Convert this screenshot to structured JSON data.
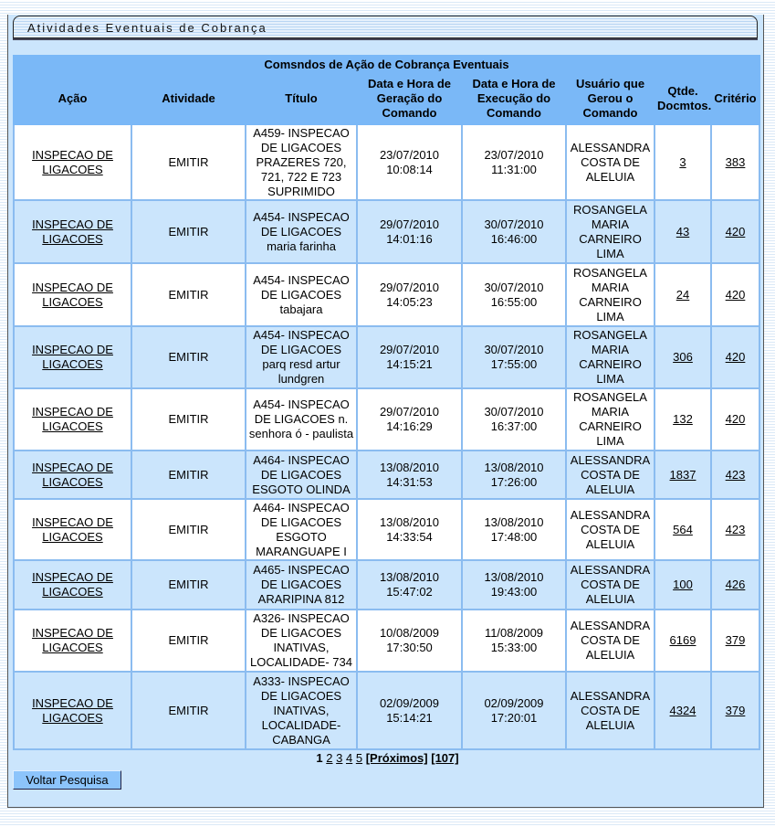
{
  "page_title": "Atividades Eventuais de Cobrança",
  "table": {
    "caption": "Comsndos de Ação de Cobrança Eventuais",
    "headers": [
      "Ação",
      "Atividade",
      "Título",
      "Data e Hora de Geração do Comando",
      "Data e Hora de Execução do Comando",
      "Usuário que Gerou o Comando",
      "Qtde. Docmtos.",
      "Critério"
    ],
    "rows": [
      {
        "acao": "INSPECAO DE LIGACOES",
        "atividade": "EMITIR",
        "titulo": "A459- INSPECAO DE LIGACOES PRAZERES 720, 721, 722 E 723 SUPRIMIDO",
        "geracao": "23/07/2010 10:08:14",
        "execucao": "23/07/2010 11:31:00",
        "usuario": "ALESSANDRA COSTA DE ALELUIA",
        "qtde": "3",
        "criterio": "383"
      },
      {
        "acao": "INSPECAO DE LIGACOES",
        "atividade": "EMITIR",
        "titulo": "A454- INSPECAO DE LIGACOES maria farinha",
        "geracao": "29/07/2010 14:01:16",
        "execucao": "30/07/2010 16:46:00",
        "usuario": "ROSANGELA MARIA CARNEIRO LIMA",
        "qtde": "43",
        "criterio": "420"
      },
      {
        "acao": "INSPECAO DE LIGACOES",
        "atividade": "EMITIR",
        "titulo": "A454- INSPECAO DE LIGACOES tabajara",
        "geracao": "29/07/2010 14:05:23",
        "execucao": "30/07/2010 16:55:00",
        "usuario": "ROSANGELA MARIA CARNEIRO LIMA",
        "qtde": "24",
        "criterio": "420"
      },
      {
        "acao": "INSPECAO DE LIGACOES",
        "atividade": "EMITIR",
        "titulo": "A454- INSPECAO DE LIGACOES parq resd artur lundgren",
        "geracao": "29/07/2010 14:15:21",
        "execucao": "30/07/2010 17:55:00",
        "usuario": "ROSANGELA MARIA CARNEIRO LIMA",
        "qtde": "306",
        "criterio": "420"
      },
      {
        "acao": "INSPECAO DE LIGACOES",
        "atividade": "EMITIR",
        "titulo": "A454- INSPECAO DE LIGACOES n. senhora ó - paulista",
        "geracao": "29/07/2010 14:16:29",
        "execucao": "30/07/2010 16:37:00",
        "usuario": "ROSANGELA MARIA CARNEIRO LIMA",
        "qtde": "132",
        "criterio": "420"
      },
      {
        "acao": "INSPECAO DE LIGACOES",
        "atividade": "EMITIR",
        "titulo": "A464- INSPECAO DE LIGACOES ESGOTO OLINDA",
        "geracao": "13/08/2010 14:31:53",
        "execucao": "13/08/2010 17:26:00",
        "usuario": "ALESSANDRA COSTA DE ALELUIA",
        "qtde": "1837",
        "criterio": "423"
      },
      {
        "acao": "INSPECAO DE LIGACOES",
        "atividade": "EMITIR",
        "titulo": "A464- INSPECAO DE LIGACOES ESGOTO MARANGUAPE I",
        "geracao": "13/08/2010 14:33:54",
        "execucao": "13/08/2010 17:48:00",
        "usuario": "ALESSANDRA COSTA DE ALELUIA",
        "qtde": "564",
        "criterio": "423"
      },
      {
        "acao": "INSPECAO DE LIGACOES",
        "atividade": "EMITIR",
        "titulo": "A465- INSPECAO DE LIGACOES ARARIPINA 812",
        "geracao": "13/08/2010 15:47:02",
        "execucao": "13/08/2010 19:43:00",
        "usuario": "ALESSANDRA COSTA DE ALELUIA",
        "qtde": "100",
        "criterio": "426"
      },
      {
        "acao": "INSPECAO DE LIGACOES",
        "atividade": "EMITIR",
        "titulo": "A326- INSPECAO DE LIGACOES INATIVAS, LOCALIDADE- 734",
        "geracao": "10/08/2009 17:30:50",
        "execucao": "11/08/2009 15:33:00",
        "usuario": "ALESSANDRA COSTA DE ALELUIA",
        "qtde": "6169",
        "criterio": "379"
      },
      {
        "acao": "INSPECAO DE LIGACOES",
        "atividade": "EMITIR",
        "titulo": "A333- INSPECAO DE LIGACOES INATIVAS, LOCALIDADE-CABANGA",
        "geracao": "02/09/2009 15:14:21",
        "execucao": "02/09/2009 17:20:01",
        "usuario": "ALESSANDRA COSTA DE ALELUIA",
        "qtde": "4324",
        "criterio": "379"
      }
    ]
  },
  "pagination": {
    "current": "1",
    "pages": [
      "2",
      "3",
      "4",
      "5"
    ],
    "next": "[Próximos]",
    "last": "[107]"
  },
  "back_button": "Voltar Pesquisa"
}
